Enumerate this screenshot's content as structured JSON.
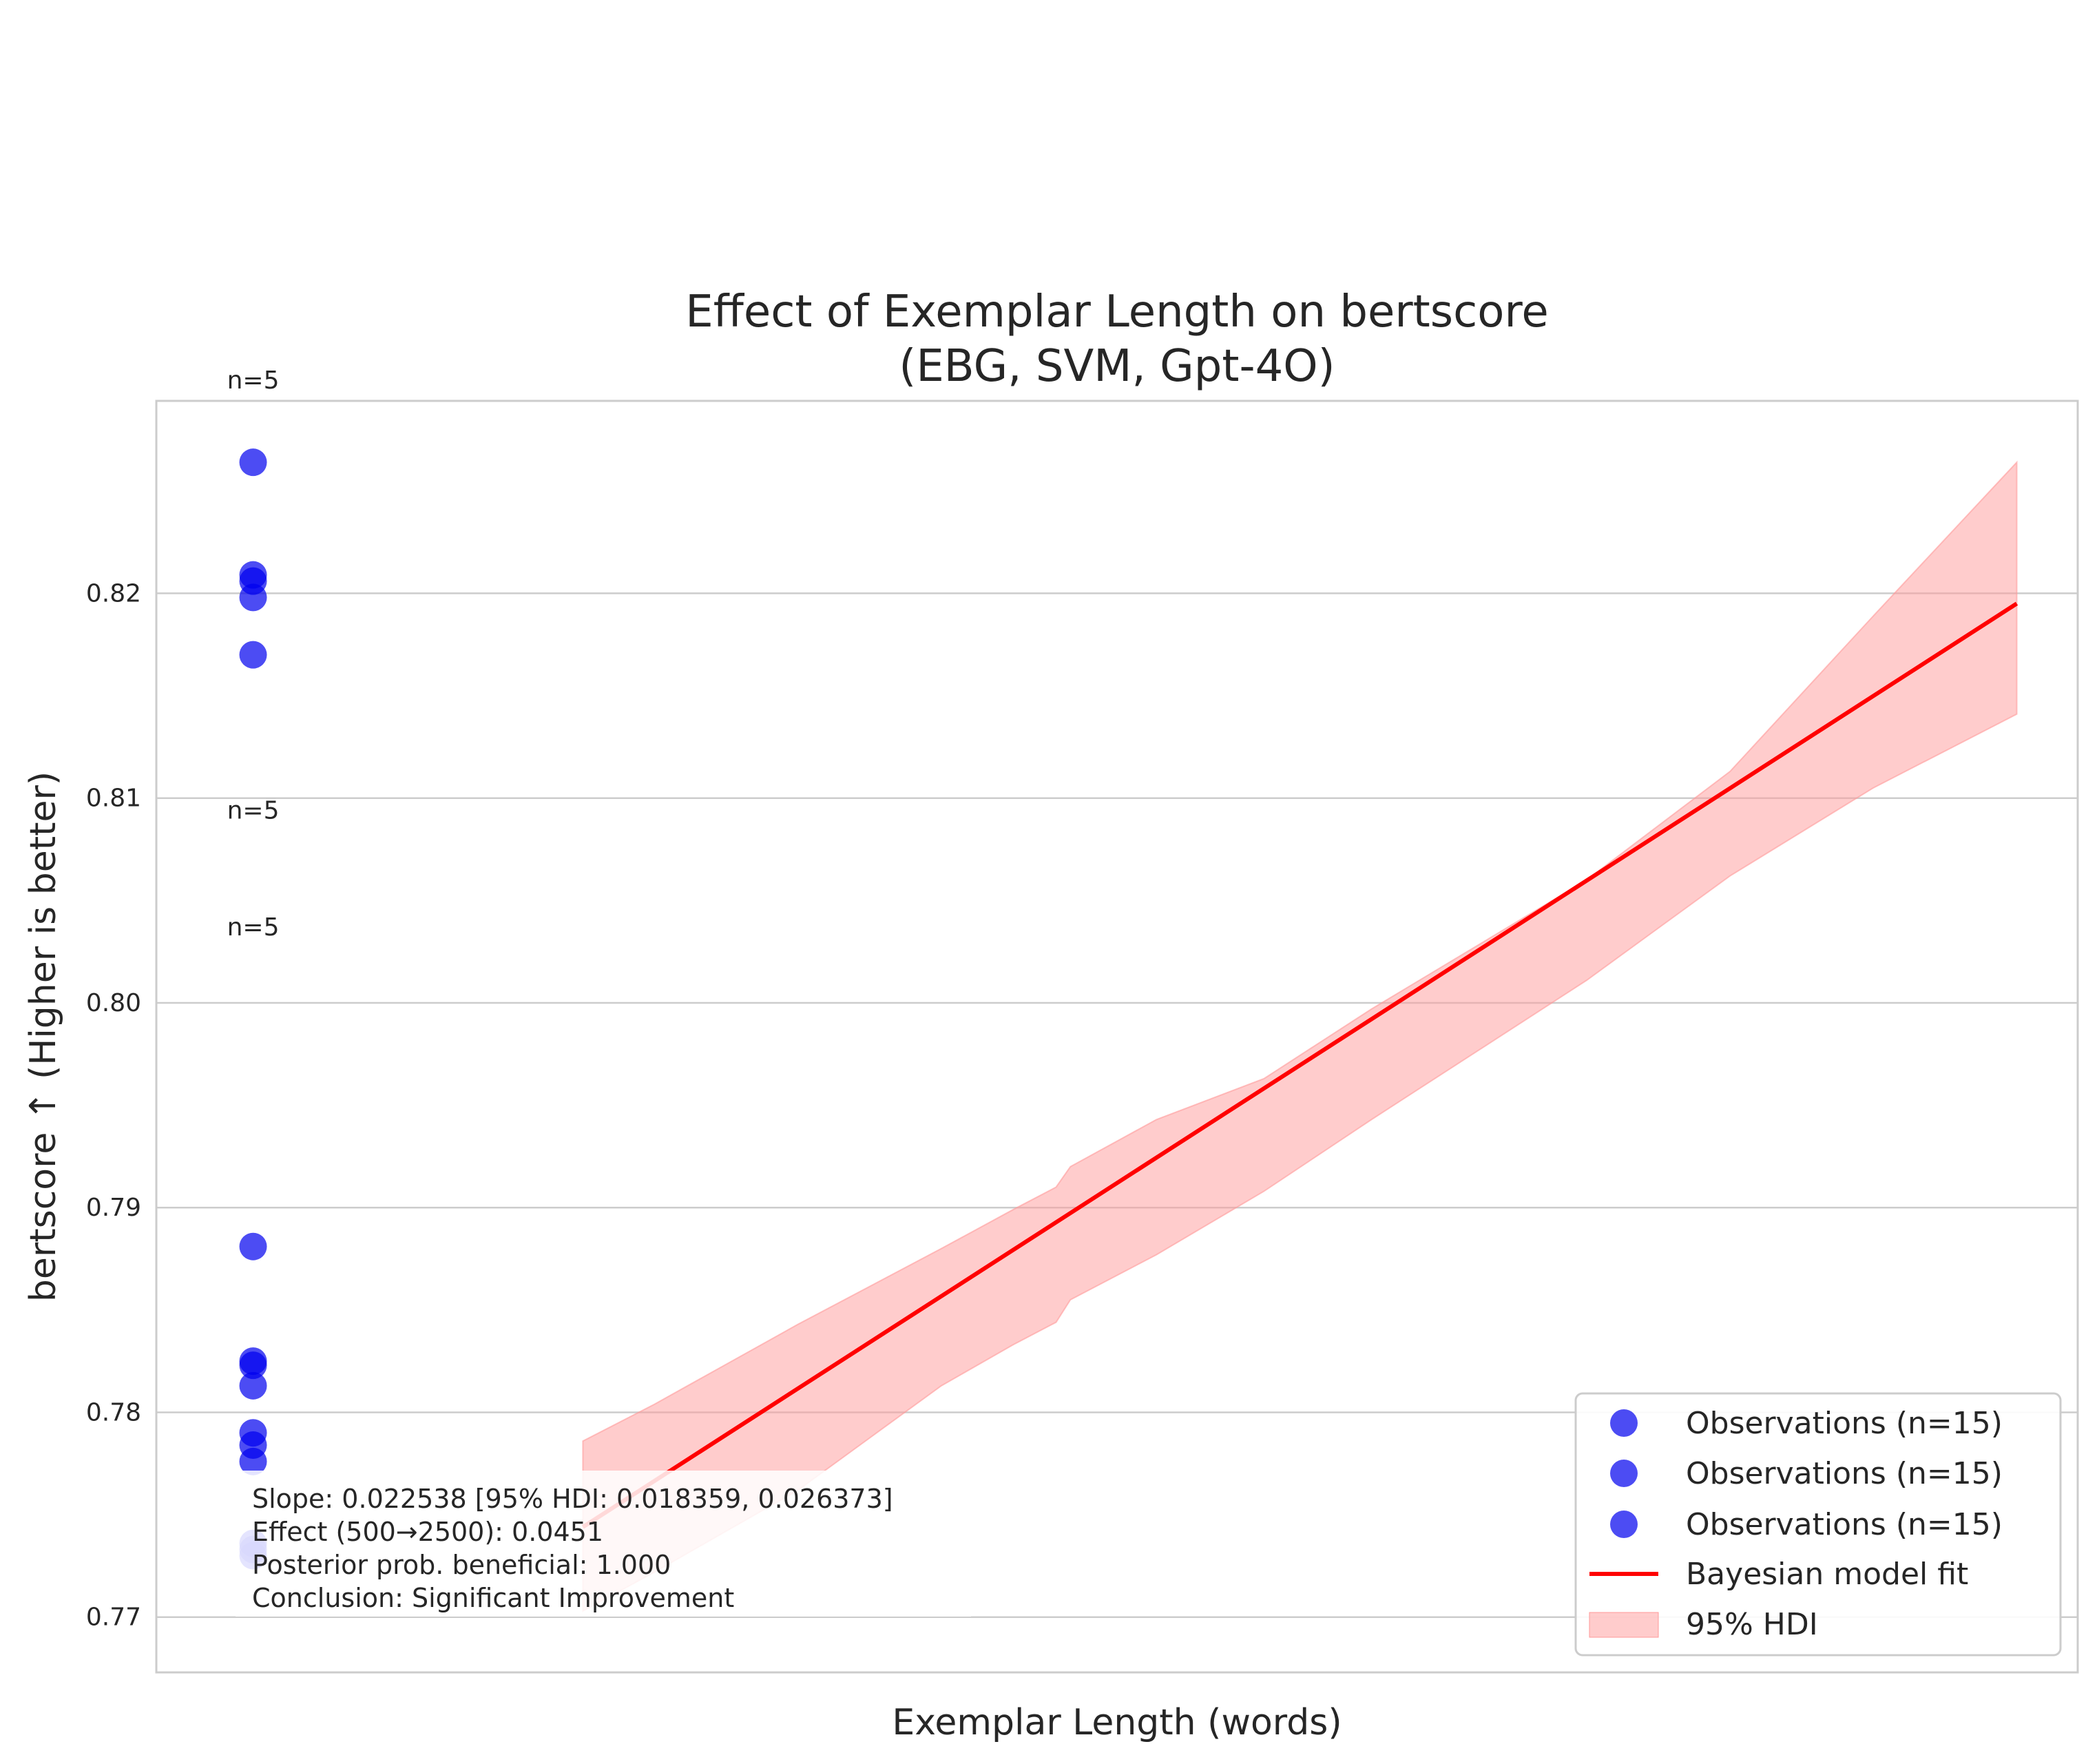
{
  "chart_data": {
    "type": "scatter",
    "title": "Effect of Exemplar Length on bertscore",
    "subtitle": "(EBG, SVM, Gpt-4O)",
    "xlabel": "Exemplar Length (words)",
    "ylabel": "bertscore ↑ (Higher is better)",
    "ylim": [
      0.7673,
      0.8294
    ],
    "xlim": [
      -95,
      2585
    ],
    "y_ticks": [
      "0.77",
      "0.78",
      "0.79",
      "0.80",
      "0.81",
      "0.82"
    ],
    "grid": "horizontal",
    "legend_position": "bottom-right",
    "series": [
      {
        "name": "Observations (n=15)",
        "kind": "scatter",
        "color": "#0000ee",
        "points": [
          {
            "x": 40,
            "y": 0.8264
          },
          {
            "x": 40,
            "y": 0.8209
          },
          {
            "x": 40,
            "y": 0.8206
          },
          {
            "x": 40,
            "y": 0.8198
          },
          {
            "x": 40,
            "y": 0.817
          },
          {
            "x": 40,
            "y": 0.7881
          },
          {
            "x": 40,
            "y": 0.7825
          },
          {
            "x": 40,
            "y": 0.7823
          },
          {
            "x": 40,
            "y": 0.7813
          },
          {
            "x": 40,
            "y": 0.779
          },
          {
            "x": 40,
            "y": 0.7784
          },
          {
            "x": 40,
            "y": 0.7776
          },
          {
            "x": 40,
            "y": 0.7736
          },
          {
            "x": 40,
            "y": 0.7733
          },
          {
            "x": 40,
            "y": 0.773
          }
        ]
      },
      {
        "name": "Observations (n=15)",
        "kind": "scatter",
        "color": "#0000ee",
        "points": []
      },
      {
        "name": "Observations (n=15)",
        "kind": "scatter",
        "color": "#0000ee",
        "points": []
      },
      {
        "name": "Bayesian model fit",
        "kind": "line",
        "color": "#ff0000",
        "points": [
          {
            "x": 500,
            "y": 0.7744
          },
          {
            "x": 2500,
            "y": 0.8195
          }
        ]
      },
      {
        "name": "95% HDI",
        "kind": "band",
        "color": "#ff9999",
        "points": [
          {
            "x": 500,
            "lower": 0.7703,
            "upper": 0.7786
          },
          {
            "x": 600,
            "lower": 0.7722,
            "upper": 0.7804
          },
          {
            "x": 800,
            "lower": 0.7762,
            "upper": 0.7843
          },
          {
            "x": 1000,
            "lower": 0.7813,
            "upper": 0.788
          },
          {
            "x": 1100,
            "lower": 0.7833,
            "upper": 0.7899
          },
          {
            "x": 1160,
            "lower": 0.7844,
            "upper": 0.791
          },
          {
            "x": 1180,
            "lower": 0.7855,
            "upper": 0.792
          },
          {
            "x": 1300,
            "lower": 0.7877,
            "upper": 0.7943
          },
          {
            "x": 1450,
            "lower": 0.7908,
            "upper": 0.7963
          },
          {
            "x": 1600,
            "lower": 0.7943,
            "upper": 0.7997
          },
          {
            "x": 1900,
            "lower": 0.8011,
            "upper": 0.806
          },
          {
            "x": 2100,
            "lower": 0.8062,
            "upper": 0.8113
          },
          {
            "x": 2300,
            "lower": 0.8105,
            "upper": 0.8189
          },
          {
            "x": 2500,
            "lower": 0.8141,
            "upper": 0.8264
          }
        ]
      }
    ],
    "count_labels": [
      {
        "text": "n=5",
        "x": 40,
        "y": 0.83
      },
      {
        "text": "n=5",
        "x": 40,
        "y": 0.809
      },
      {
        "text": "n=5",
        "x": 40,
        "y": 0.8033
      }
    ],
    "stats_box": [
      "Slope: 0.022538 [95% HDI: 0.018359, 0.026373]",
      "Effect (500→2500): 0.0451",
      "Posterior prob. beneficial: 1.000",
      "Conclusion: Significant Improvement"
    ]
  }
}
